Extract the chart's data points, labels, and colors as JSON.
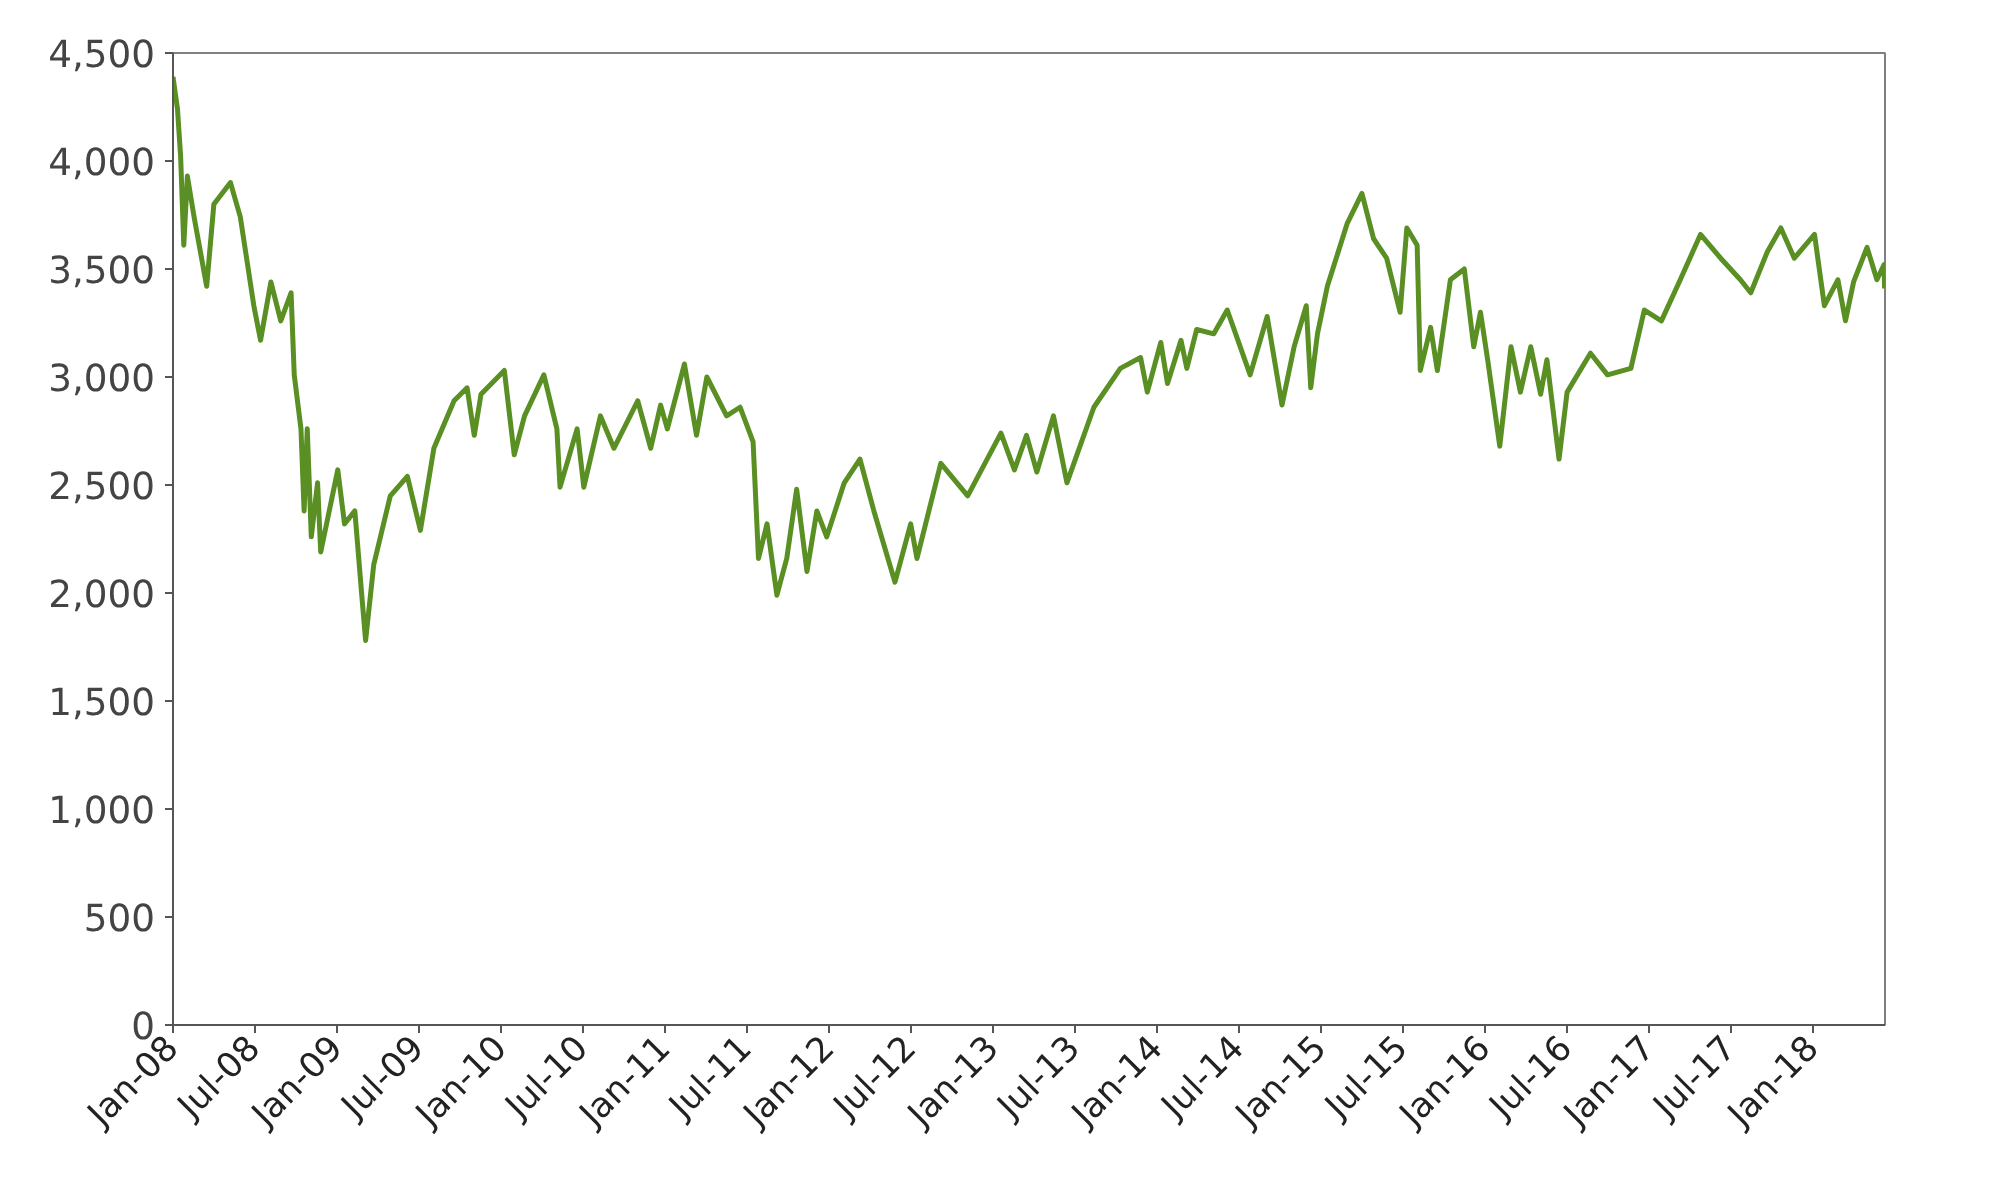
{
  "chart_data": {
    "type": "line",
    "x": [
      "2008-01-01",
      "2008-01-11",
      "2008-01-18",
      "2008-01-25",
      "2008-02-02",
      "2008-02-17",
      "2008-03-16",
      "2008-04-01",
      "2008-05-08",
      "2008-05-30",
      "2008-06-29",
      "2008-07-14",
      "2008-08-06",
      "2008-08-28",
      "2008-09-20",
      "2008-09-27",
      "2008-10-12",
      "2008-10-19",
      "2008-10-26",
      "2008-11-04",
      "2008-11-18",
      "2008-11-25",
      "2009-01-02",
      "2009-01-17",
      "2009-02-09",
      "2009-02-24",
      "2009-03-05",
      "2009-03-23",
      "2009-04-29",
      "2009-06-06",
      "2009-07-05",
      "2009-08-04",
      "2009-09-18",
      "2009-10-17",
      "2009-11-02",
      "2009-11-17",
      "2010-01-08",
      "2010-01-30",
      "2010-02-22",
      "2010-04-06",
      "2010-05-05",
      "2010-05-12",
      "2010-06-19",
      "2010-07-04",
      "2010-08-10",
      "2010-09-09",
      "2010-11-01",
      "2010-11-30",
      "2010-12-22",
      "2011-01-06",
      "2011-02-13",
      "2011-03-12",
      "2011-04-04",
      "2011-05-18",
      "2011-06-17",
      "2011-07-16",
      "2011-07-28",
      "2011-08-16",
      "2011-09-07",
      "2011-09-29",
      "2011-10-21",
      "2011-11-13",
      "2011-12-05",
      "2011-12-27",
      "2012-02-04",
      "2012-03-10",
      "2012-04-10",
      "2012-05-27",
      "2012-07-01",
      "2012-07-15",
      "2012-09-06",
      "2012-11-05",
      "2013-01-18",
      "2013-02-17",
      "2013-03-16",
      "2013-04-08",
      "2013-05-15",
      "2013-06-14",
      "2013-08-13",
      "2013-10-11",
      "2013-11-25",
      "2013-12-10",
      "2014-01-09",
      "2014-01-24",
      "2014-02-23",
      "2014-03-08",
      "2014-03-30",
      "2014-05-07",
      "2014-06-06",
      "2014-07-27",
      "2014-09-03",
      "2014-10-06",
      "2014-11-02",
      "2014-11-29",
      "2014-12-09",
      "2014-12-24",
      "2015-01-15",
      "2015-02-28",
      "2015-04-02",
      "2015-04-28",
      "2015-05-27",
      "2015-06-26",
      "2015-07-11",
      "2015-08-03",
      "2015-08-10",
      "2015-09-02",
      "2015-09-17",
      "2015-10-16",
      "2015-11-16",
      "2015-12-07",
      "2015-12-22",
      "2016-01-07",
      "2016-02-03",
      "2016-02-28",
      "2016-03-20",
      "2016-04-12",
      "2016-05-04",
      "2016-05-18",
      "2016-06-14",
      "2016-07-02",
      "2016-08-23",
      "2016-09-30",
      "2016-11-21",
      "2016-12-21",
      "2017-01-28",
      "2017-03-11",
      "2017-04-25",
      "2017-06-09",
      "2017-07-23",
      "2017-08-15",
      "2017-09-21",
      "2017-10-21",
      "2017-11-20",
      "2018-01-04",
      "2018-01-26",
      "2018-02-25",
      "2018-03-14",
      "2018-04-01",
      "2018-05-01",
      "2018-05-23",
      "2018-06-08",
      "2018-06-09"
    ],
    "series": [
      {
        "color": "#5a8f23",
        "values": [
          4390,
          4240,
          4020,
          3610,
          3930,
          3740,
          3420,
          3800,
          3900,
          3740,
          3330,
          3170,
          3440,
          3260,
          3390,
          3010,
          2760,
          2380,
          2760,
          2260,
          2510,
          2190,
          2570,
          2320,
          2380,
          2000,
          1780,
          2130,
          2450,
          2540,
          2290,
          2670,
          2890,
          2950,
          2730,
          2920,
          3030,
          2640,
          2820,
          3010,
          2760,
          2490,
          2760,
          2490,
          2820,
          2670,
          2890,
          2670,
          2870,
          2760,
          3060,
          2730,
          3000,
          2820,
          2860,
          2700,
          2160,
          2320,
          1990,
          2160,
          2480,
          2100,
          2380,
          2260,
          2510,
          2620,
          2380,
          2050,
          2320,
          2160,
          2600,
          2450,
          2740,
          2570,
          2730,
          2560,
          2820,
          2510,
          2860,
          3040,
          3090,
          2930,
          3160,
          2970,
          3170,
          3040,
          3220,
          3200,
          3310,
          3010,
          3280,
          2870,
          3140,
          3330,
          2950,
          3200,
          3420,
          3710,
          3850,
          3640,
          3550,
          3300,
          3690,
          3610,
          3030,
          3230,
          3030,
          3450,
          3500,
          3140,
          3300,
          3080,
          2680,
          3140,
          2930,
          3140,
          2920,
          3080,
          2620,
          2930,
          3110,
          3010,
          3040,
          3310,
          3260,
          3450,
          3660,
          3550,
          3450,
          3390,
          3580,
          3690,
          3550,
          3660,
          3330,
          3450,
          3260,
          3440,
          3600,
          3450,
          3520,
          3410
        ]
      }
    ],
    "xlim": [
      "2008-01-01",
      "2018-06-10"
    ],
    "xticks": [
      {
        "value": "2008-01-01",
        "label": "Jan-08"
      },
      {
        "value": "2008-07-01",
        "label": "Jul-08"
      },
      {
        "value": "2009-01-01",
        "label": "Jan-09"
      },
      {
        "value": "2009-07-01",
        "label": "Jul-09"
      },
      {
        "value": "2010-01-01",
        "label": "Jan-10"
      },
      {
        "value": "2010-07-01",
        "label": "Jul-10"
      },
      {
        "value": "2011-01-01",
        "label": "Jan-11"
      },
      {
        "value": "2011-07-01",
        "label": "Jul-11"
      },
      {
        "value": "2012-01-01",
        "label": "Jan-12"
      },
      {
        "value": "2012-07-01",
        "label": "Jul-12"
      },
      {
        "value": "2013-01-01",
        "label": "Jan-13"
      },
      {
        "value": "2013-07-01",
        "label": "Jul-13"
      },
      {
        "value": "2014-01-01",
        "label": "Jan-14"
      },
      {
        "value": "2014-07-01",
        "label": "Jul-14"
      },
      {
        "value": "2015-01-01",
        "label": "Jan-15"
      },
      {
        "value": "2015-07-01",
        "label": "Jul-15"
      },
      {
        "value": "2016-01-01",
        "label": "Jan-16"
      },
      {
        "value": "2016-07-01",
        "label": "Jul-16"
      },
      {
        "value": "2017-01-01",
        "label": "Jan-17"
      },
      {
        "value": "2017-07-01",
        "label": "Jul-17"
      },
      {
        "value": "2018-01-01",
        "label": "Jan-18"
      }
    ],
    "ylim": [
      0,
      4500
    ],
    "yticks": [
      0,
      500,
      {
        "value": 1000,
        "label": "1,000"
      },
      {
        "value": 1500,
        "label": "1,500"
      },
      {
        "value": 2000,
        "label": "2,000"
      },
      {
        "value": 2500,
        "label": "2,500"
      },
      {
        "value": 3000,
        "label": "3,000"
      },
      {
        "value": 3500,
        "label": "3,500"
      },
      {
        "value": 4000,
        "label": "4,000"
      },
      {
        "value": 4500,
        "label": "4,500"
      }
    ],
    "grid": false,
    "line_style": "solid"
  }
}
